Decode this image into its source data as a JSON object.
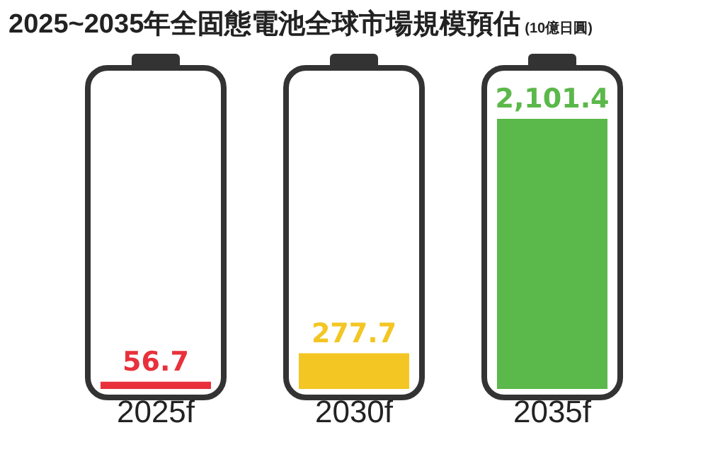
{
  "chart_data": {
    "type": "bar",
    "title": "2025~2035年全固態電池全球市場規模預估",
    "subtitle": "(10億日圓)",
    "categories": [
      "2025f",
      "2030f",
      "2035f"
    ],
    "values": [
      56.7,
      277.7,
      2101.4
    ],
    "value_labels": [
      "56.7",
      "277.7",
      "2,101.4"
    ],
    "colors": [
      "#e8313b",
      "#f3c623",
      "#5bb84a"
    ],
    "grid": false,
    "legend": false
  }
}
